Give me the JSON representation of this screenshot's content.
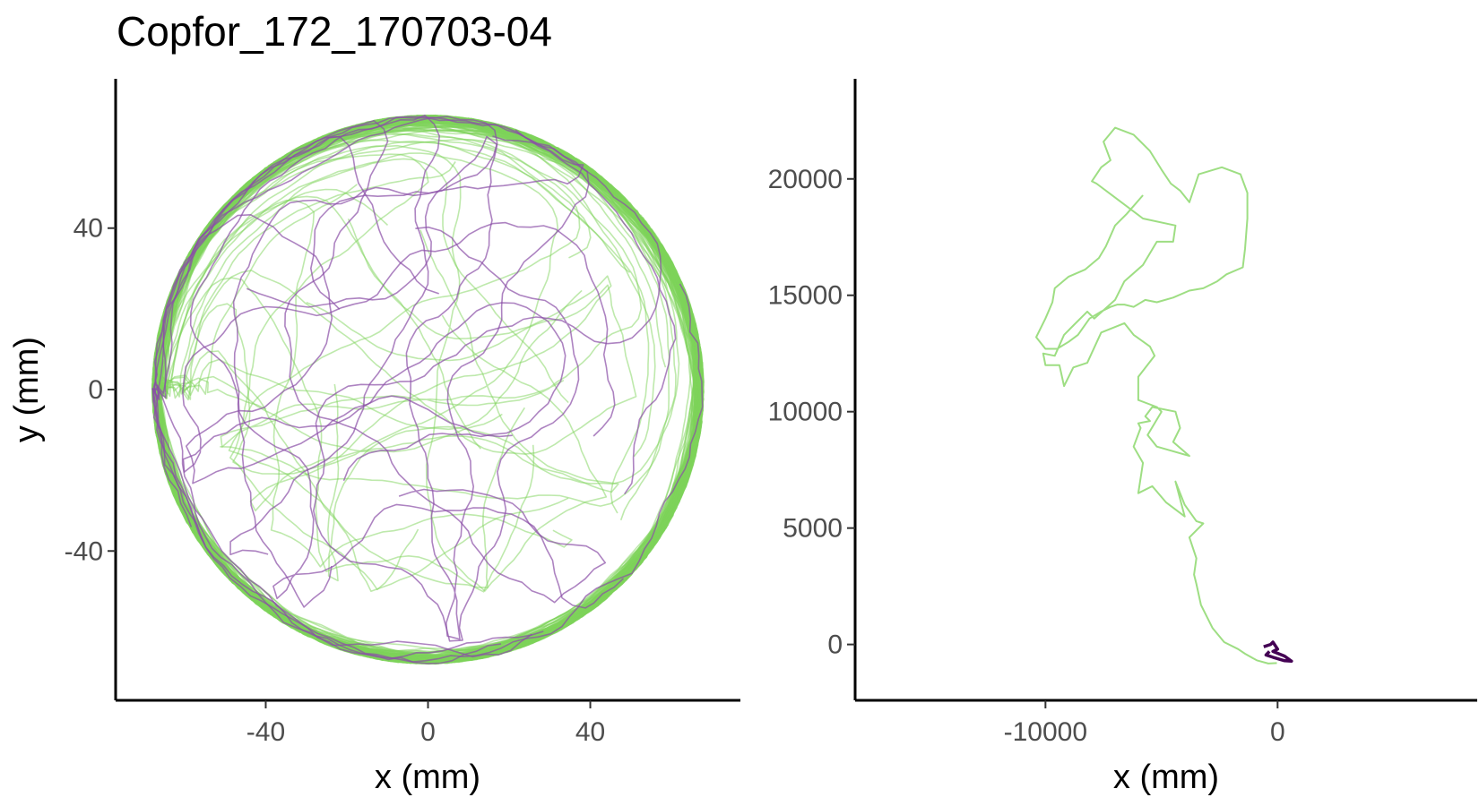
{
  "figure": {
    "title": "Copfor_172_170703-04"
  },
  "colors": {
    "track_green": "#7ed35a",
    "track_purple": "#8a4fa6",
    "track_dark_purple": "#440154",
    "axis": "#000000",
    "tick_text": "#4d4d4d"
  },
  "chart_data": [
    {
      "type": "line",
      "title": "Copfor_172_170703-04",
      "xlabel": "x (mm)",
      "ylabel": "y (mm)",
      "xlim": [
        -77,
        77
      ],
      "ylim": [
        -77,
        77
      ],
      "x_ticks": [
        -40,
        0,
        40
      ],
      "x_tick_labels": [
        "-40",
        "0",
        "40"
      ],
      "y_ticks": [
        -40,
        0,
        40
      ],
      "y_tick_labels": [
        "-40",
        "0",
        "40"
      ],
      "grid": false,
      "legend": "none",
      "arena_radius": 68,
      "series": [
        {
          "color": "#7ed35a",
          "opacity": 0.5
        },
        {
          "color": "#8a4fa6",
          "opacity": 0.7
        }
      ]
    },
    {
      "type": "line",
      "xlabel": "x (mm)",
      "ylabel": "",
      "xlim": [
        -18200,
        8600
      ],
      "ylim": [
        -2400,
        24300
      ],
      "x_ticks": [
        -10000,
        0
      ],
      "x_tick_labels": [
        "-10000",
        "0"
      ],
      "y_ticks": [
        0,
        5000,
        10000,
        15000,
        20000
      ],
      "y_tick_labels": [
        "0",
        "5000",
        "10000",
        "15000",
        "20000"
      ],
      "grid": false,
      "legend": "none",
      "series": [
        {
          "color": "#7ed35a",
          "x": [
            -30,
            -400,
            -900,
            -1400,
            -1700,
            -2300,
            -2800,
            -3300,
            -3500,
            -3600,
            -3500,
            -3800,
            -3200,
            -3500,
            -4000,
            -4400,
            -4000,
            -4800,
            -5400,
            -6000,
            -5800,
            -6200,
            -5900,
            -6000,
            -5500,
            -5700,
            -5400,
            -4400,
            -4200,
            -4500,
            -3800,
            -5200,
            -5600,
            -5000,
            -5200,
            -6000,
            -6000,
            -5300,
            -5500,
            -6200,
            -6600,
            -7600,
            -8200,
            -8800,
            -9200,
            -9400,
            -10000,
            -10100,
            -9600,
            -9200,
            -8800,
            -8200,
            -7900,
            -7000,
            -6600,
            -5800,
            -5200,
            -4500,
            -4400,
            -5800,
            -7000,
            -7800,
            -8000,
            -7600,
            -7200,
            -7500,
            -7000,
            -6200,
            -5500,
            -5000,
            -4600,
            -4200,
            -3800,
            -3400,
            -2400,
            -1600,
            -1300,
            -1300,
            -1400,
            -1500,
            -2200,
            -2600,
            -3200,
            -3800,
            -4500,
            -5200,
            -5700,
            -6200,
            -6600,
            -6900,
            -7200,
            -7600,
            -8100,
            -8600,
            -9000,
            -9500,
            -10000,
            -10400,
            -10000,
            -9700,
            -9600,
            -9000,
            -8300,
            -7700,
            -7400,
            -7000,
            -6500,
            -5800
          ],
          "y": [
            -800,
            -820,
            -680,
            -400,
            -200,
            100,
            700,
            1700,
            2600,
            3000,
            3700,
            4600,
            5200,
            5300,
            6000,
            7000,
            5500,
            6100,
            6800,
            6500,
            7800,
            8500,
            9300,
            9500,
            9600,
            9800,
            10200,
            10000,
            9300,
            8700,
            8100,
            8500,
            9000,
            10000,
            10200,
            10500,
            11500,
            12400,
            12800,
            13300,
            13800,
            13400,
            12100,
            11900,
            11100,
            12000,
            12000,
            12500,
            12400,
            13300,
            13700,
            14300,
            14000,
            14800,
            15600,
            16300,
            17300,
            17300,
            18000,
            18300,
            19200,
            19800,
            19900,
            20500,
            20800,
            21600,
            22200,
            21900,
            21200,
            20400,
            19800,
            19500,
            19000,
            20200,
            20500,
            20200,
            19400,
            18300,
            17000,
            16200,
            15900,
            15600,
            15300,
            15200,
            14900,
            14700,
            14800,
            14500,
            14600,
            14600,
            14500,
            14300,
            14000,
            13300,
            13000,
            12700,
            12700,
            13200,
            14000,
            14700,
            15300,
            15800,
            16100,
            16600,
            17100,
            18000,
            18500,
            19300
          ]
        },
        {
          "color": "#440154",
          "x": [
            -600,
            -300,
            -200,
            0,
            -200,
            300,
            600,
            300,
            -200,
            -500,
            -350
          ],
          "y": [
            -100,
            0,
            100,
            -200,
            -300,
            -500,
            -720,
            -700,
            -550,
            -450,
            -300
          ]
        }
      ]
    }
  ]
}
